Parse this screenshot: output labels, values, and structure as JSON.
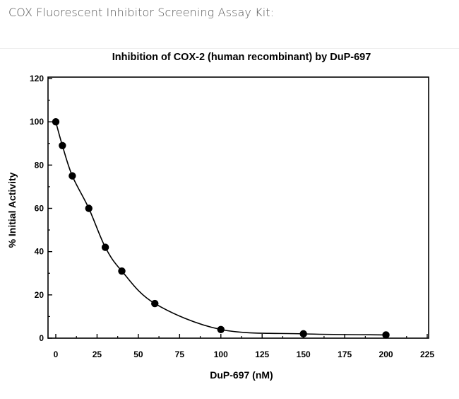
{
  "page": {
    "header_title": "COX Fluorescent Inhibitor Screening Assay Kit:"
  },
  "chart_data": {
    "type": "line",
    "title": "Inhibition of COX-2 (human recombinant) by DuP-697",
    "xlabel": "DuP-697 (nM)",
    "ylabel": "% Initial Activity",
    "xlim": [
      0,
      225
    ],
    "ylim": [
      0,
      120
    ],
    "x_ticks": [
      0,
      25,
      50,
      75,
      100,
      125,
      150,
      175,
      200,
      225
    ],
    "y_ticks": [
      0,
      20,
      40,
      60,
      80,
      100,
      120
    ],
    "grid": false,
    "series": [
      {
        "markers": "filled-circle",
        "x": [
          0,
          4,
          10,
          20,
          30,
          40,
          60,
          100,
          150,
          200
        ],
        "y": [
          100,
          89,
          75,
          60,
          42,
          31,
          16,
          4,
          2,
          1.5
        ]
      }
    ],
    "colors": {
      "line": "#000000",
      "marker": "#000000",
      "frame": "#000000"
    }
  }
}
